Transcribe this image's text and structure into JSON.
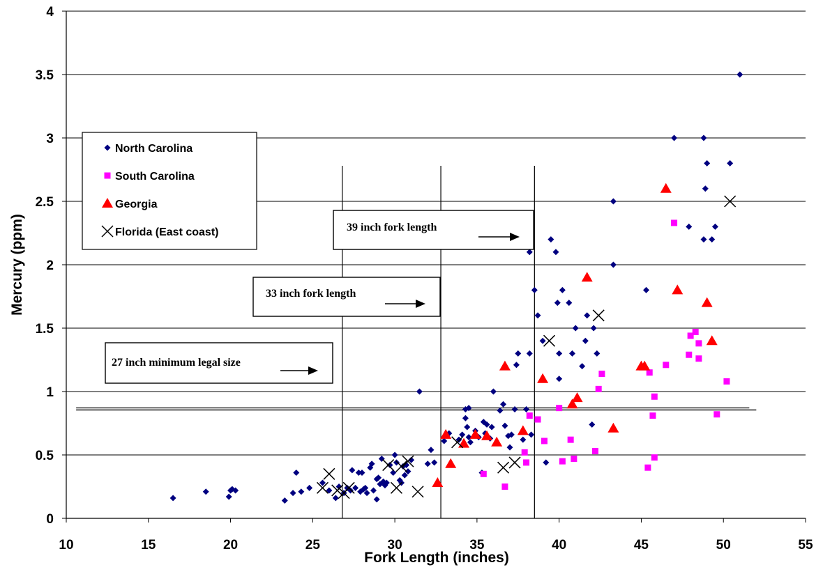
{
  "chart_data": {
    "type": "scatter",
    "title": "",
    "xlabel": "Fork Length (inches)",
    "ylabel": "Mercury (ppm)",
    "xlim": [
      10,
      55
    ],
    "ylim": [
      0,
      4
    ],
    "x_ticks": [
      "10",
      "15",
      "20",
      "25",
      "30",
      "35",
      "40",
      "45",
      "50",
      "55"
    ],
    "y_ticks": [
      "0",
      "0.5",
      "1",
      "1.5",
      "2",
      "2.5",
      "3",
      "3.5",
      "4"
    ],
    "grid": "horizontal",
    "legend_position": "left",
    "reference_lines": {
      "vertical_x": [
        26.8,
        32.8,
        38.5
      ],
      "horizontal": {
        "x1": 10.6,
        "y1": 0.86,
        "x2": 52.0,
        "y2": 0.86
      }
    },
    "annotations": [
      {
        "text": "27 inch minimum legal size",
        "points_to_x": 26.8
      },
      {
        "text": "33 inch fork length",
        "points_to_x": 32.8
      },
      {
        "text": "39 inch fork length",
        "points_to_x": 38.5
      }
    ],
    "series": [
      {
        "name": "North Carolina",
        "marker": "diamond",
        "color": "#000080",
        "points": [
          [
            16.5,
            0.16
          ],
          [
            18.5,
            0.21
          ],
          [
            19.9,
            0.17
          ],
          [
            20.0,
            0.22
          ],
          [
            20.1,
            0.23
          ],
          [
            20.3,
            0.22
          ],
          [
            23.3,
            0.14
          ],
          [
            23.8,
            0.2
          ],
          [
            24.0,
            0.36
          ],
          [
            24.3,
            0.21
          ],
          [
            24.8,
            0.24
          ],
          [
            25.6,
            0.28
          ],
          [
            26.0,
            0.22
          ],
          [
            26.4,
            0.16
          ],
          [
            26.6,
            0.25
          ],
          [
            26.9,
            0.2
          ],
          [
            27.1,
            0.24
          ],
          [
            27.3,
            0.22
          ],
          [
            27.4,
            0.38
          ],
          [
            27.6,
            0.24
          ],
          [
            27.8,
            0.36
          ],
          [
            27.9,
            0.21
          ],
          [
            28.0,
            0.36
          ],
          [
            28.1,
            0.23
          ],
          [
            28.2,
            0.24
          ],
          [
            28.3,
            0.2
          ],
          [
            28.5,
            0.4
          ],
          [
            28.6,
            0.43
          ],
          [
            28.7,
            0.22
          ],
          [
            28.9,
            0.15
          ],
          [
            28.9,
            0.31
          ],
          [
            29.0,
            0.32
          ],
          [
            29.1,
            0.27
          ],
          [
            29.2,
            0.47
          ],
          [
            29.3,
            0.29
          ],
          [
            29.4,
            0.26
          ],
          [
            29.5,
            0.28
          ],
          [
            29.7,
            0.42
          ],
          [
            29.9,
            0.36
          ],
          [
            30.0,
            0.5
          ],
          [
            30.1,
            0.44
          ],
          [
            30.3,
            0.3
          ],
          [
            30.4,
            0.28
          ],
          [
            30.5,
            0.41
          ],
          [
            30.6,
            0.34
          ],
          [
            30.7,
            0.42
          ],
          [
            30.8,
            0.37
          ],
          [
            31.0,
            0.46
          ],
          [
            31.5,
            1.0
          ],
          [
            32.0,
            0.43
          ],
          [
            32.2,
            0.54
          ],
          [
            32.4,
            0.44
          ],
          [
            33.0,
            0.61
          ],
          [
            33.3,
            0.67
          ],
          [
            33.9,
            0.62
          ],
          [
            34.1,
            0.66
          ],
          [
            34.3,
            0.86
          ],
          [
            34.3,
            0.79
          ],
          [
            34.4,
            0.72
          ],
          [
            34.5,
            0.87
          ],
          [
            34.5,
            0.64
          ],
          [
            34.6,
            0.6
          ],
          [
            34.9,
            0.69
          ],
          [
            35.1,
            0.64
          ],
          [
            35.3,
            0.36
          ],
          [
            35.4,
            0.76
          ],
          [
            35.5,
            0.67
          ],
          [
            35.6,
            0.74
          ],
          [
            35.8,
            0.63
          ],
          [
            35.9,
            0.72
          ],
          [
            36.0,
            1.0
          ],
          [
            36.4,
            0.85
          ],
          [
            36.6,
            0.9
          ],
          [
            36.7,
            0.73
          ],
          [
            36.9,
            0.65
          ],
          [
            37.0,
            0.56
          ],
          [
            37.1,
            0.66
          ],
          [
            37.3,
            0.86
          ],
          [
            37.4,
            1.21
          ],
          [
            37.5,
            1.3
          ],
          [
            37.8,
            0.62
          ],
          [
            38.0,
            0.86
          ],
          [
            38.2,
            1.3
          ],
          [
            38.3,
            0.66
          ],
          [
            38.5,
            1.8
          ],
          [
            38.7,
            1.6
          ],
          [
            38.2,
            2.1
          ],
          [
            39.0,
            1.4
          ],
          [
            39.2,
            0.44
          ],
          [
            39.5,
            2.2
          ],
          [
            39.8,
            2.1
          ],
          [
            39.9,
            1.7
          ],
          [
            40.0,
            1.3
          ],
          [
            40.0,
            1.1
          ],
          [
            40.2,
            1.8
          ],
          [
            40.6,
            1.7
          ],
          [
            40.8,
            1.3
          ],
          [
            41.0,
            1.5
          ],
          [
            41.4,
            1.2
          ],
          [
            41.6,
            1.4
          ],
          [
            41.7,
            1.6
          ],
          [
            42.0,
            0.74
          ],
          [
            42.1,
            1.5
          ],
          [
            42.3,
            1.3
          ],
          [
            43.3,
            2.5
          ],
          [
            43.3,
            2.0
          ],
          [
            45.3,
            1.8
          ],
          [
            47.0,
            3.0
          ],
          [
            47.9,
            2.3
          ],
          [
            48.8,
            3.0
          ],
          [
            48.8,
            2.2
          ],
          [
            48.9,
            2.6
          ],
          [
            49.0,
            2.8
          ],
          [
            49.3,
            2.2
          ],
          [
            49.5,
            2.3
          ],
          [
            50.4,
            2.8
          ],
          [
            51.0,
            3.5
          ]
        ]
      },
      {
        "name": "South Carolina",
        "marker": "square",
        "color": "#ff00ff",
        "points": [
          [
            35.4,
            0.35
          ],
          [
            36.7,
            0.25
          ],
          [
            37.9,
            0.52
          ],
          [
            38.0,
            0.44
          ],
          [
            38.2,
            0.81
          ],
          [
            38.7,
            0.78
          ],
          [
            39.1,
            0.61
          ],
          [
            40.0,
            0.87
          ],
          [
            40.2,
            0.45
          ],
          [
            40.7,
            0.62
          ],
          [
            40.9,
            0.47
          ],
          [
            42.2,
            0.53
          ],
          [
            42.4,
            1.02
          ],
          [
            42.6,
            1.14
          ],
          [
            45.4,
            0.4
          ],
          [
            45.5,
            1.15
          ],
          [
            45.7,
            0.81
          ],
          [
            45.8,
            0.48
          ],
          [
            45.8,
            0.96
          ],
          [
            46.5,
            1.21
          ],
          [
            47.0,
            2.33
          ],
          [
            47.9,
            1.29
          ],
          [
            48.0,
            1.44
          ],
          [
            48.3,
            1.47
          ],
          [
            48.5,
            1.26
          ],
          [
            48.5,
            1.38
          ],
          [
            49.6,
            0.82
          ],
          [
            50.2,
            1.08
          ]
        ]
      },
      {
        "name": "Georgia",
        "marker": "triangle",
        "color": "#ff0000",
        "points": [
          [
            32.6,
            0.28
          ],
          [
            33.1,
            0.66
          ],
          [
            33.4,
            0.43
          ],
          [
            34.2,
            0.59
          ],
          [
            34.9,
            0.66
          ],
          [
            35.6,
            0.65
          ],
          [
            36.2,
            0.6
          ],
          [
            36.7,
            1.2
          ],
          [
            37.8,
            0.69
          ],
          [
            39.0,
            1.1
          ],
          [
            40.8,
            0.9
          ],
          [
            41.1,
            0.95
          ],
          [
            41.7,
            1.9
          ],
          [
            43.3,
            0.71
          ],
          [
            45.0,
            1.2
          ],
          [
            45.2,
            1.2
          ],
          [
            46.5,
            2.6
          ],
          [
            47.2,
            1.8
          ],
          [
            49.0,
            1.7
          ],
          [
            49.3,
            1.4
          ]
        ]
      },
      {
        "name": "Florida (East coast)",
        "marker": "x",
        "color": "#000000",
        "points": [
          [
            25.6,
            0.24
          ],
          [
            26.0,
            0.35
          ],
          [
            26.5,
            0.22
          ],
          [
            26.9,
            0.2
          ],
          [
            27.2,
            0.24
          ],
          [
            29.6,
            0.42
          ],
          [
            30.1,
            0.24
          ],
          [
            30.4,
            0.41
          ],
          [
            30.8,
            0.45
          ],
          [
            31.4,
            0.21
          ],
          [
            33.8,
            0.6
          ],
          [
            36.6,
            0.4
          ],
          [
            37.3,
            0.44
          ],
          [
            39.4,
            1.4
          ],
          [
            42.4,
            1.6
          ],
          [
            50.4,
            2.5
          ]
        ]
      }
    ]
  }
}
